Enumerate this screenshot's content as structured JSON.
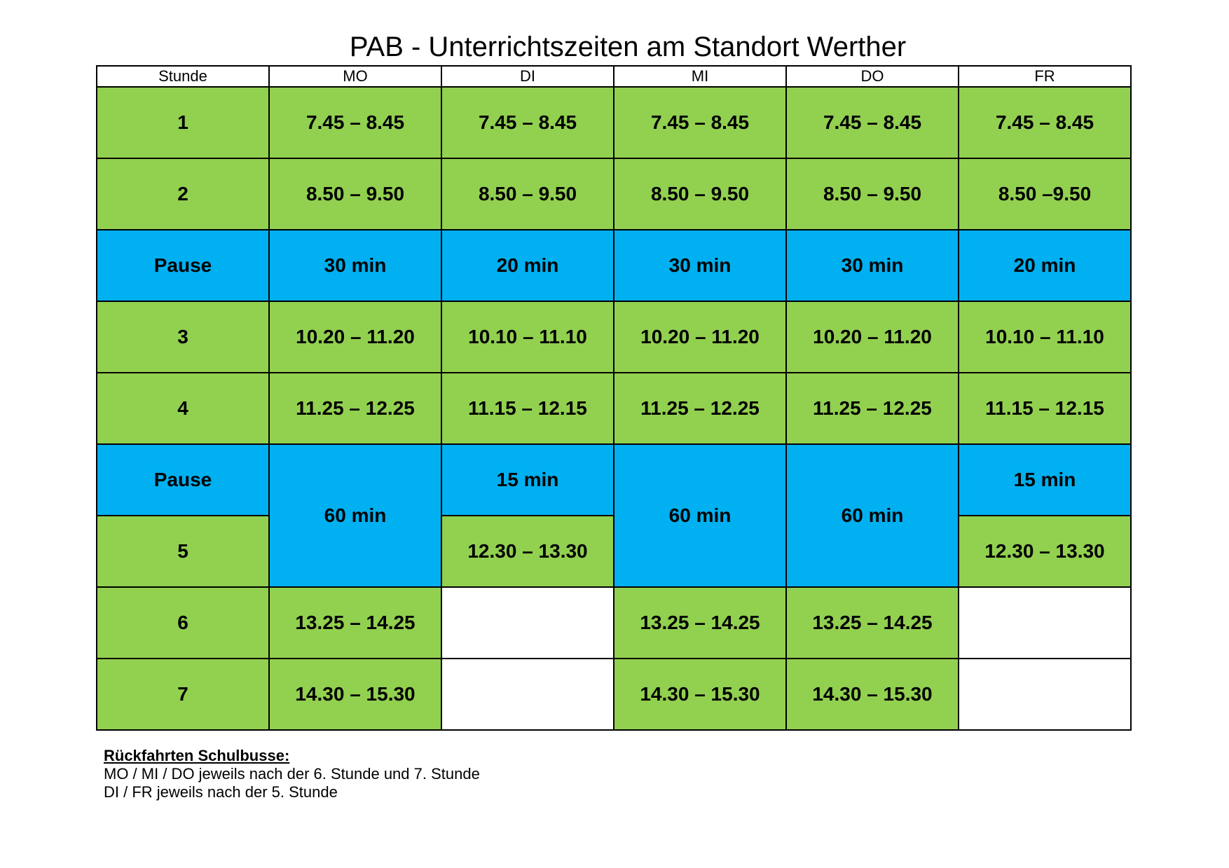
{
  "title": "PAB - Unterrichtszeiten am Standort Werther",
  "headers": [
    "Stunde",
    "MO",
    "DI",
    "MI",
    "DO",
    "FR"
  ],
  "rows": {
    "r1": {
      "label": "1",
      "mo": "7.45 – 8.45",
      "di": "7.45 – 8.45",
      "mi": "7.45 – 8.45",
      "do": "7.45 – 8.45",
      "fr": "7.45 – 8.45"
    },
    "r2": {
      "label": "2",
      "mo": "8.50 – 9.50",
      "di": "8.50 – 9.50",
      "mi": "8.50 – 9.50",
      "do": "8.50 – 9.50",
      "fr": "8.50 –9.50"
    },
    "pause1": {
      "label": "Pause",
      "mo": "30 min",
      "di": "20 min",
      "mi": "30 min",
      "do": "30 min",
      "fr": "20 min"
    },
    "r3": {
      "label": "3",
      "mo": "10.20 – 11.20",
      "di": "10.10 – 11.10",
      "mi": "10.20 – 11.20",
      "do": "10.20 – 11.20",
      "fr": "10.10 – 11.10"
    },
    "r4": {
      "label": "4",
      "mo": "11.25 – 12.25",
      "di": "11.15 – 12.15",
      "mi": "11.25 – 12.25",
      "do": "11.25 – 12.25",
      "fr": "11.15 – 12.15"
    },
    "pause2": {
      "label": "Pause",
      "mo": "60 min",
      "di": "15 min",
      "mi": "60 min",
      "do": "60 min",
      "fr": "15 min"
    },
    "r5": {
      "label": "5",
      "di": "12.30 – 13.30",
      "fr": "12.30 – 13.30"
    },
    "r6": {
      "label": "6",
      "mo": "13.25 – 14.25",
      "di": "",
      "mi": "13.25 – 14.25",
      "do": "13.25 – 14.25",
      "fr": ""
    },
    "r7": {
      "label": "7",
      "mo": "14.30 – 15.30",
      "di": "",
      "mi": "14.30 – 15.30",
      "do": "14.30 – 15.30",
      "fr": ""
    }
  },
  "footer": {
    "heading": "Rückfahrten Schulbusse:",
    "line1": "MO / MI / DO jeweils nach der 6. Stunde und 7. Stunde",
    "line2": "DI / FR jeweils nach der 5. Stunde"
  },
  "colors": {
    "lesson": "#92d050",
    "pause": "#00b0f0",
    "empty": "#ffffff"
  }
}
